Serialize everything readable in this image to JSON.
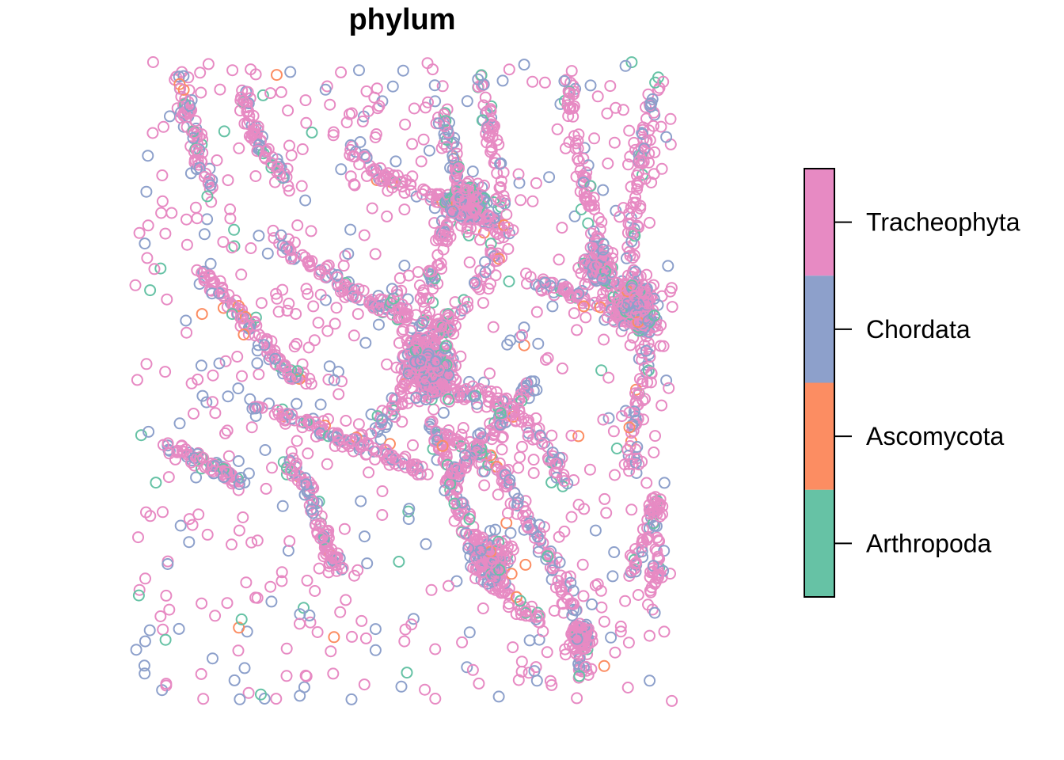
{
  "chart_data": {
    "type": "scatter",
    "title": "phylum",
    "xlabel": "",
    "ylabel": "",
    "axes_shown": false,
    "grid": false,
    "legend": {
      "placement": "right",
      "style": "colorbar",
      "entries": [
        {
          "label": "Tracheophyta",
          "color": "#E78AC3"
        },
        {
          "label": "Chordata",
          "color": "#8DA0CB"
        },
        {
          "label": "Ascomycota",
          "color": "#FC8D62"
        },
        {
          "label": "Arthropoda",
          "color": "#66C2A5"
        }
      ]
    },
    "xlim": [
      0,
      100
    ],
    "ylim": [
      0,
      100
    ],
    "note_points": "Thousands of open circles; values below are a representative sampling reconstructed approximately.",
    "series": [
      {
        "name": "Tracheophyta",
        "color": "#E78AC3"
      },
      {
        "name": "Chordata",
        "color": "#8DA0CB"
      },
      {
        "name": "Ascomycota",
        "color": "#FC8D62"
      },
      {
        "name": "Arthropoda",
        "color": "#66C2A5"
      }
    ]
  }
}
